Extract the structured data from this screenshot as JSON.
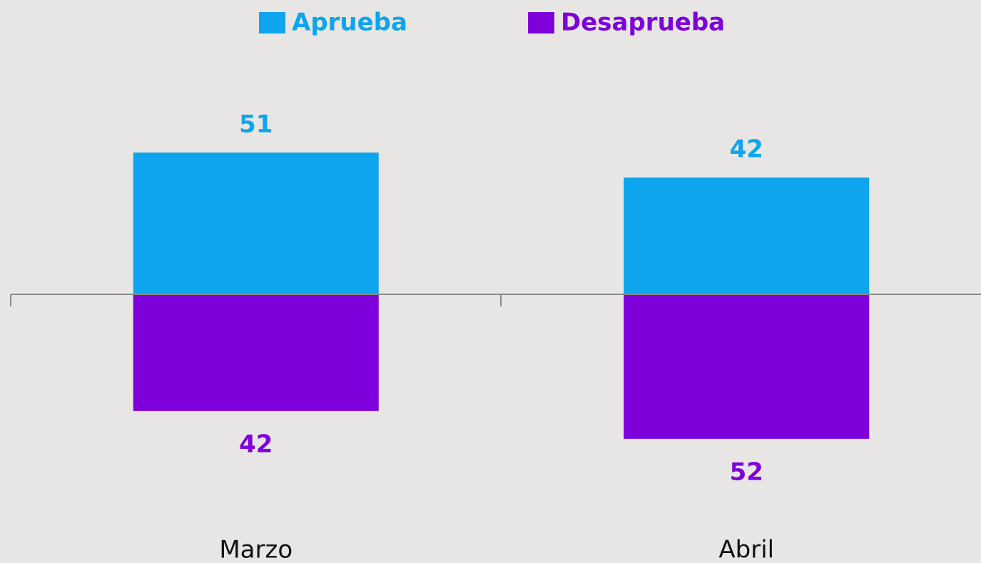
{
  "chart_data": {
    "type": "diverging_bar",
    "categories": [
      "Marzo",
      "Abril"
    ],
    "series": [
      {
        "name": "Aprueba",
        "color": "#0ea5ee",
        "values": [
          51,
          42
        ]
      },
      {
        "name": "Desaprueba",
        "color": "#7e00db",
        "values": [
          42,
          52
        ]
      }
    ]
  }
}
